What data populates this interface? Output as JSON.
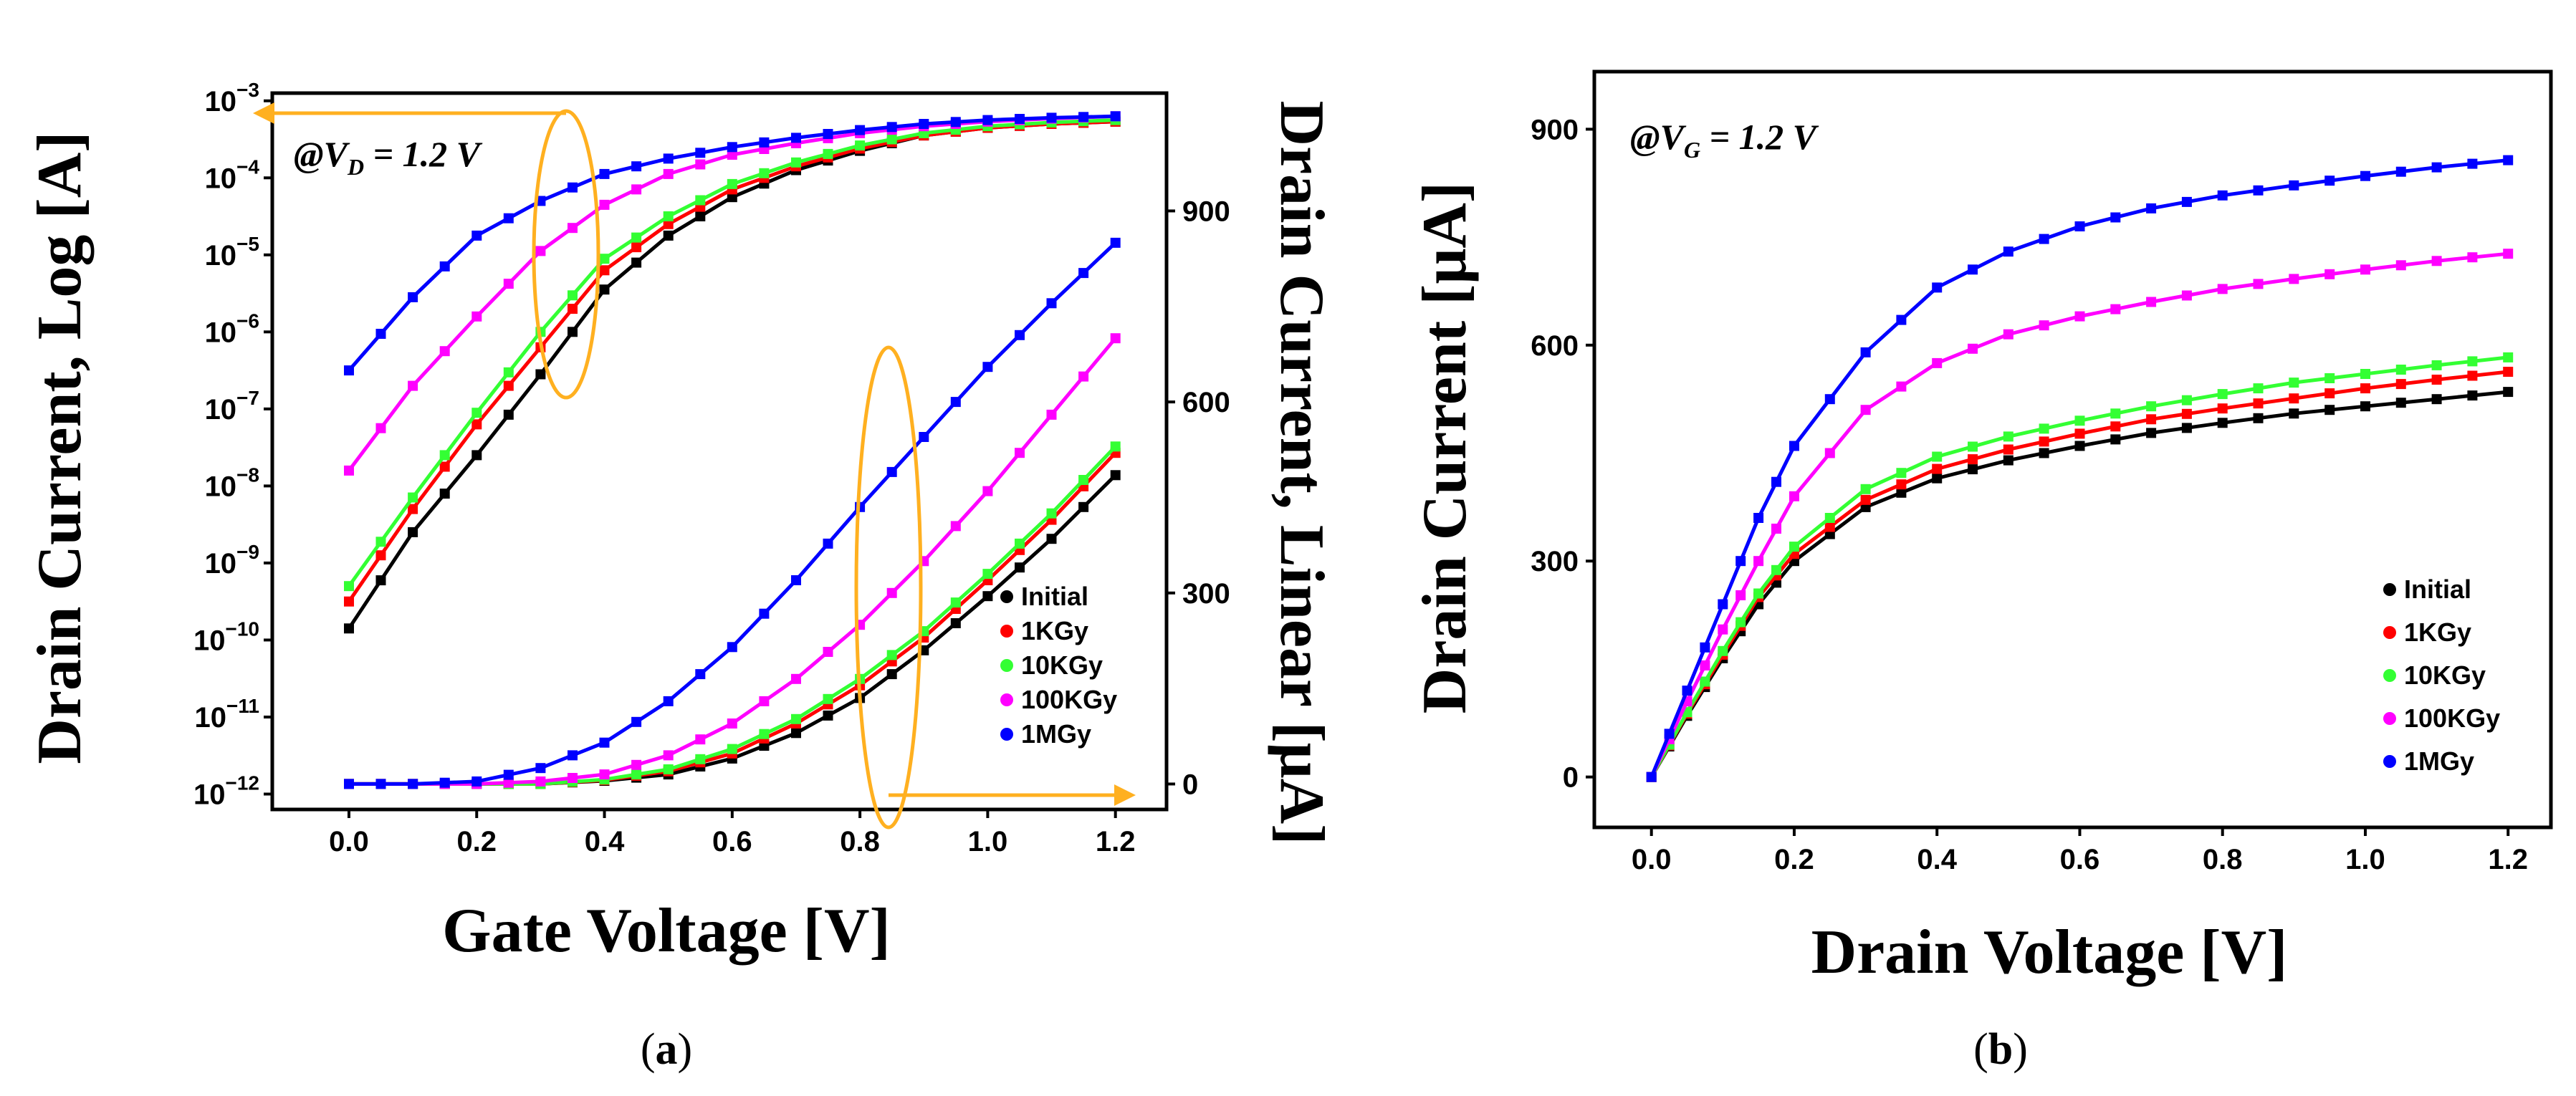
{
  "colors": {
    "Initial": "#000000",
    "1KGy": "#ff0000",
    "10KGy": "#33ff33",
    "100KGy": "#ff00ff",
    "1MGy": "#0000ff",
    "annotation": "#ffb020"
  },
  "captions": {
    "a": "a",
    "b": "b"
  },
  "chart_data": [
    {
      "id": "a",
      "type": "line",
      "xlabel": "Gate Voltage [V]",
      "ylabel_left": "Drain Current, Log [A]",
      "ylabel_right": "Drain Current, Linear [μA]",
      "annotation": {
        "prefix": "@",
        "var": "V",
        "sub": "D",
        "value": " = 1.2 V"
      },
      "xlim": [
        -0.12,
        1.28
      ],
      "xticks": [
        0.0,
        0.2,
        0.4,
        0.6,
        0.8,
        1.0,
        1.2
      ],
      "xtick_labels": [
        "0.0",
        "0.2",
        "0.4",
        "0.6",
        "0.8",
        "1.0",
        "1.2"
      ],
      "ylim_left_log10": [
        -12.2,
        -2.9
      ],
      "yticks_left_exp": [
        -12,
        -11,
        -10,
        -9,
        -8,
        -7,
        -6,
        -5,
        -4,
        -3
      ],
      "ylim_right": [
        -40,
        1085
      ],
      "yticks_right": [
        0,
        300,
        600,
        900
      ],
      "legend": [
        "Initial",
        "1KGy",
        "10KGy",
        "100KGy",
        "1MGy"
      ],
      "series_log": [
        {
          "name": "Initial",
          "x": [
            0.0,
            0.1,
            0.2,
            0.3,
            0.4,
            0.5,
            0.6,
            0.7,
            0.8,
            0.9,
            1.0,
            1.1,
            1.2
          ],
          "log10_current": [
            -9.85,
            -8.6,
            -7.6,
            -6.55,
            -5.45,
            -4.75,
            -4.25,
            -3.9,
            -3.65,
            -3.45,
            -3.35,
            -3.3,
            -3.27
          ]
        },
        {
          "name": "1KGy",
          "x": [
            0.0,
            0.1,
            0.2,
            0.3,
            0.4,
            0.5,
            0.6,
            0.7,
            0.8,
            0.9,
            1.0,
            1.1,
            1.2
          ],
          "log10_current": [
            -9.5,
            -8.3,
            -7.2,
            -6.2,
            -5.2,
            -4.6,
            -4.15,
            -3.85,
            -3.62,
            -3.45,
            -3.35,
            -3.3,
            -3.27
          ]
        },
        {
          "name": "10KGy",
          "x": [
            0.0,
            0.1,
            0.2,
            0.3,
            0.4,
            0.5,
            0.6,
            0.7,
            0.8,
            0.9,
            1.0,
            1.1,
            1.2
          ],
          "log10_current": [
            -9.3,
            -8.15,
            -7.05,
            -6.0,
            -5.05,
            -4.5,
            -4.08,
            -3.8,
            -3.58,
            -3.42,
            -3.33,
            -3.28,
            -3.25
          ]
        },
        {
          "name": "100KGy",
          "x": [
            0.0,
            0.1,
            0.2,
            0.3,
            0.4,
            0.5,
            0.6,
            0.7,
            0.8,
            0.9,
            1.0,
            1.1,
            1.2
          ],
          "log10_current": [
            -7.8,
            -6.7,
            -5.8,
            -4.95,
            -4.35,
            -3.95,
            -3.7,
            -3.55,
            -3.42,
            -3.33,
            -3.27,
            -3.23,
            -3.2
          ]
        },
        {
          "name": "1MGy",
          "x": [
            0.0,
            0.1,
            0.2,
            0.3,
            0.4,
            0.5,
            0.6,
            0.7,
            0.8,
            0.9,
            1.0,
            1.1,
            1.2
          ],
          "log10_current": [
            -6.5,
            -5.55,
            -4.75,
            -4.3,
            -3.95,
            -3.75,
            -3.6,
            -3.48,
            -3.38,
            -3.3,
            -3.25,
            -3.22,
            -3.2
          ]
        }
      ],
      "series_linear": [
        {
          "name": "Initial",
          "x": [
            0.0,
            0.1,
            0.2,
            0.3,
            0.4,
            0.5,
            0.6,
            0.7,
            0.8,
            0.9,
            1.0,
            1.1,
            1.2
          ],
          "current_uA": [
            0,
            0,
            0,
            0,
            5,
            15,
            40,
            80,
            135,
            210,
            295,
            385,
            485
          ]
        },
        {
          "name": "1KGy",
          "x": [
            0.0,
            0.1,
            0.2,
            0.3,
            0.4,
            0.5,
            0.6,
            0.7,
            0.8,
            0.9,
            1.0,
            1.1,
            1.2
          ],
          "current_uA": [
            0,
            0,
            0,
            0,
            6,
            20,
            48,
            95,
            155,
            230,
            320,
            415,
            520
          ]
        },
        {
          "name": "10KGy",
          "x": [
            0.0,
            0.1,
            0.2,
            0.3,
            0.4,
            0.5,
            0.6,
            0.7,
            0.8,
            0.9,
            1.0,
            1.1,
            1.2
          ],
          "current_uA": [
            0,
            0,
            0,
            0,
            7,
            23,
            55,
            102,
            165,
            240,
            330,
            425,
            530
          ]
        },
        {
          "name": "100KGy",
          "x": [
            0.0,
            0.1,
            0.2,
            0.3,
            0.4,
            0.5,
            0.6,
            0.7,
            0.8,
            0.9,
            1.0,
            1.1,
            1.2
          ],
          "current_uA": [
            0,
            0,
            0,
            4,
            15,
            45,
            95,
            165,
            250,
            350,
            460,
            580,
            700
          ]
        },
        {
          "name": "1MGy",
          "x": [
            0.0,
            0.1,
            0.2,
            0.3,
            0.4,
            0.5,
            0.6,
            0.7,
            0.8,
            0.9,
            1.0,
            1.1,
            1.2
          ],
          "current_uA": [
            0,
            0,
            4,
            25,
            65,
            130,
            215,
            320,
            435,
            545,
            655,
            755,
            850
          ]
        }
      ]
    },
    {
      "id": "b",
      "type": "line",
      "xlabel": "Drain Voltage [V]",
      "ylabel": "Drain Current [μA]",
      "annotation": {
        "prefix": "@",
        "var": "V",
        "sub": "G",
        "value": " = 1.2 V"
      },
      "xlim": [
        -0.08,
        1.26
      ],
      "xticks": [
        0.0,
        0.2,
        0.4,
        0.6,
        0.8,
        1.0,
        1.2
      ],
      "xtick_labels": [
        "0.0",
        "0.2",
        "0.4",
        "0.6",
        "0.8",
        "1.0",
        "1.2"
      ],
      "ylim": [
        -70,
        980
      ],
      "yticks": [
        0,
        300,
        600,
        900
      ],
      "legend": [
        "Initial",
        "1KGy",
        "10KGy",
        "100KGy",
        "1MGy"
      ],
      "series": [
        {
          "name": "Initial",
          "x": [
            0.0,
            0.05,
            0.1,
            0.15,
            0.2,
            0.3,
            0.4,
            0.5,
            0.6,
            0.7,
            0.8,
            0.9,
            1.0,
            1.1,
            1.2
          ],
          "y": [
            0,
            85,
            165,
            240,
            300,
            375,
            415,
            440,
            460,
            478,
            492,
            505,
            515,
            525,
            535
          ]
        },
        {
          "name": "1KGy",
          "x": [
            0.0,
            0.05,
            0.1,
            0.15,
            0.2,
            0.3,
            0.4,
            0.5,
            0.6,
            0.7,
            0.8,
            0.9,
            1.0,
            1.1,
            1.2
          ],
          "y": [
            0,
            88,
            170,
            250,
            310,
            385,
            428,
            455,
            477,
            497,
            512,
            526,
            540,
            552,
            563
          ]
        },
        {
          "name": "10KGy",
          "x": [
            0.0,
            0.05,
            0.1,
            0.15,
            0.2,
            0.3,
            0.4,
            0.5,
            0.6,
            0.7,
            0.8,
            0.9,
            1.0,
            1.1,
            1.2
          ],
          "y": [
            0,
            90,
            175,
            255,
            320,
            400,
            445,
            473,
            495,
            515,
            532,
            548,
            560,
            572,
            583
          ]
        },
        {
          "name": "100KGy",
          "x": [
            0.0,
            0.05,
            0.1,
            0.15,
            0.2,
            0.3,
            0.4,
            0.5,
            0.6,
            0.7,
            0.8,
            0.9,
            1.0,
            1.1,
            1.2
          ],
          "y": [
            0,
            105,
            205,
            300,
            390,
            510,
            575,
            615,
            640,
            660,
            678,
            692,
            705,
            717,
            727
          ]
        },
        {
          "name": "1MGy",
          "x": [
            0.0,
            0.05,
            0.1,
            0.15,
            0.2,
            0.3,
            0.4,
            0.5,
            0.6,
            0.7,
            0.8,
            0.9,
            1.0,
            1.1,
            1.2
          ],
          "y": [
            0,
            120,
            240,
            360,
            460,
            590,
            680,
            730,
            765,
            790,
            808,
            822,
            835,
            847,
            857
          ]
        }
      ]
    }
  ]
}
